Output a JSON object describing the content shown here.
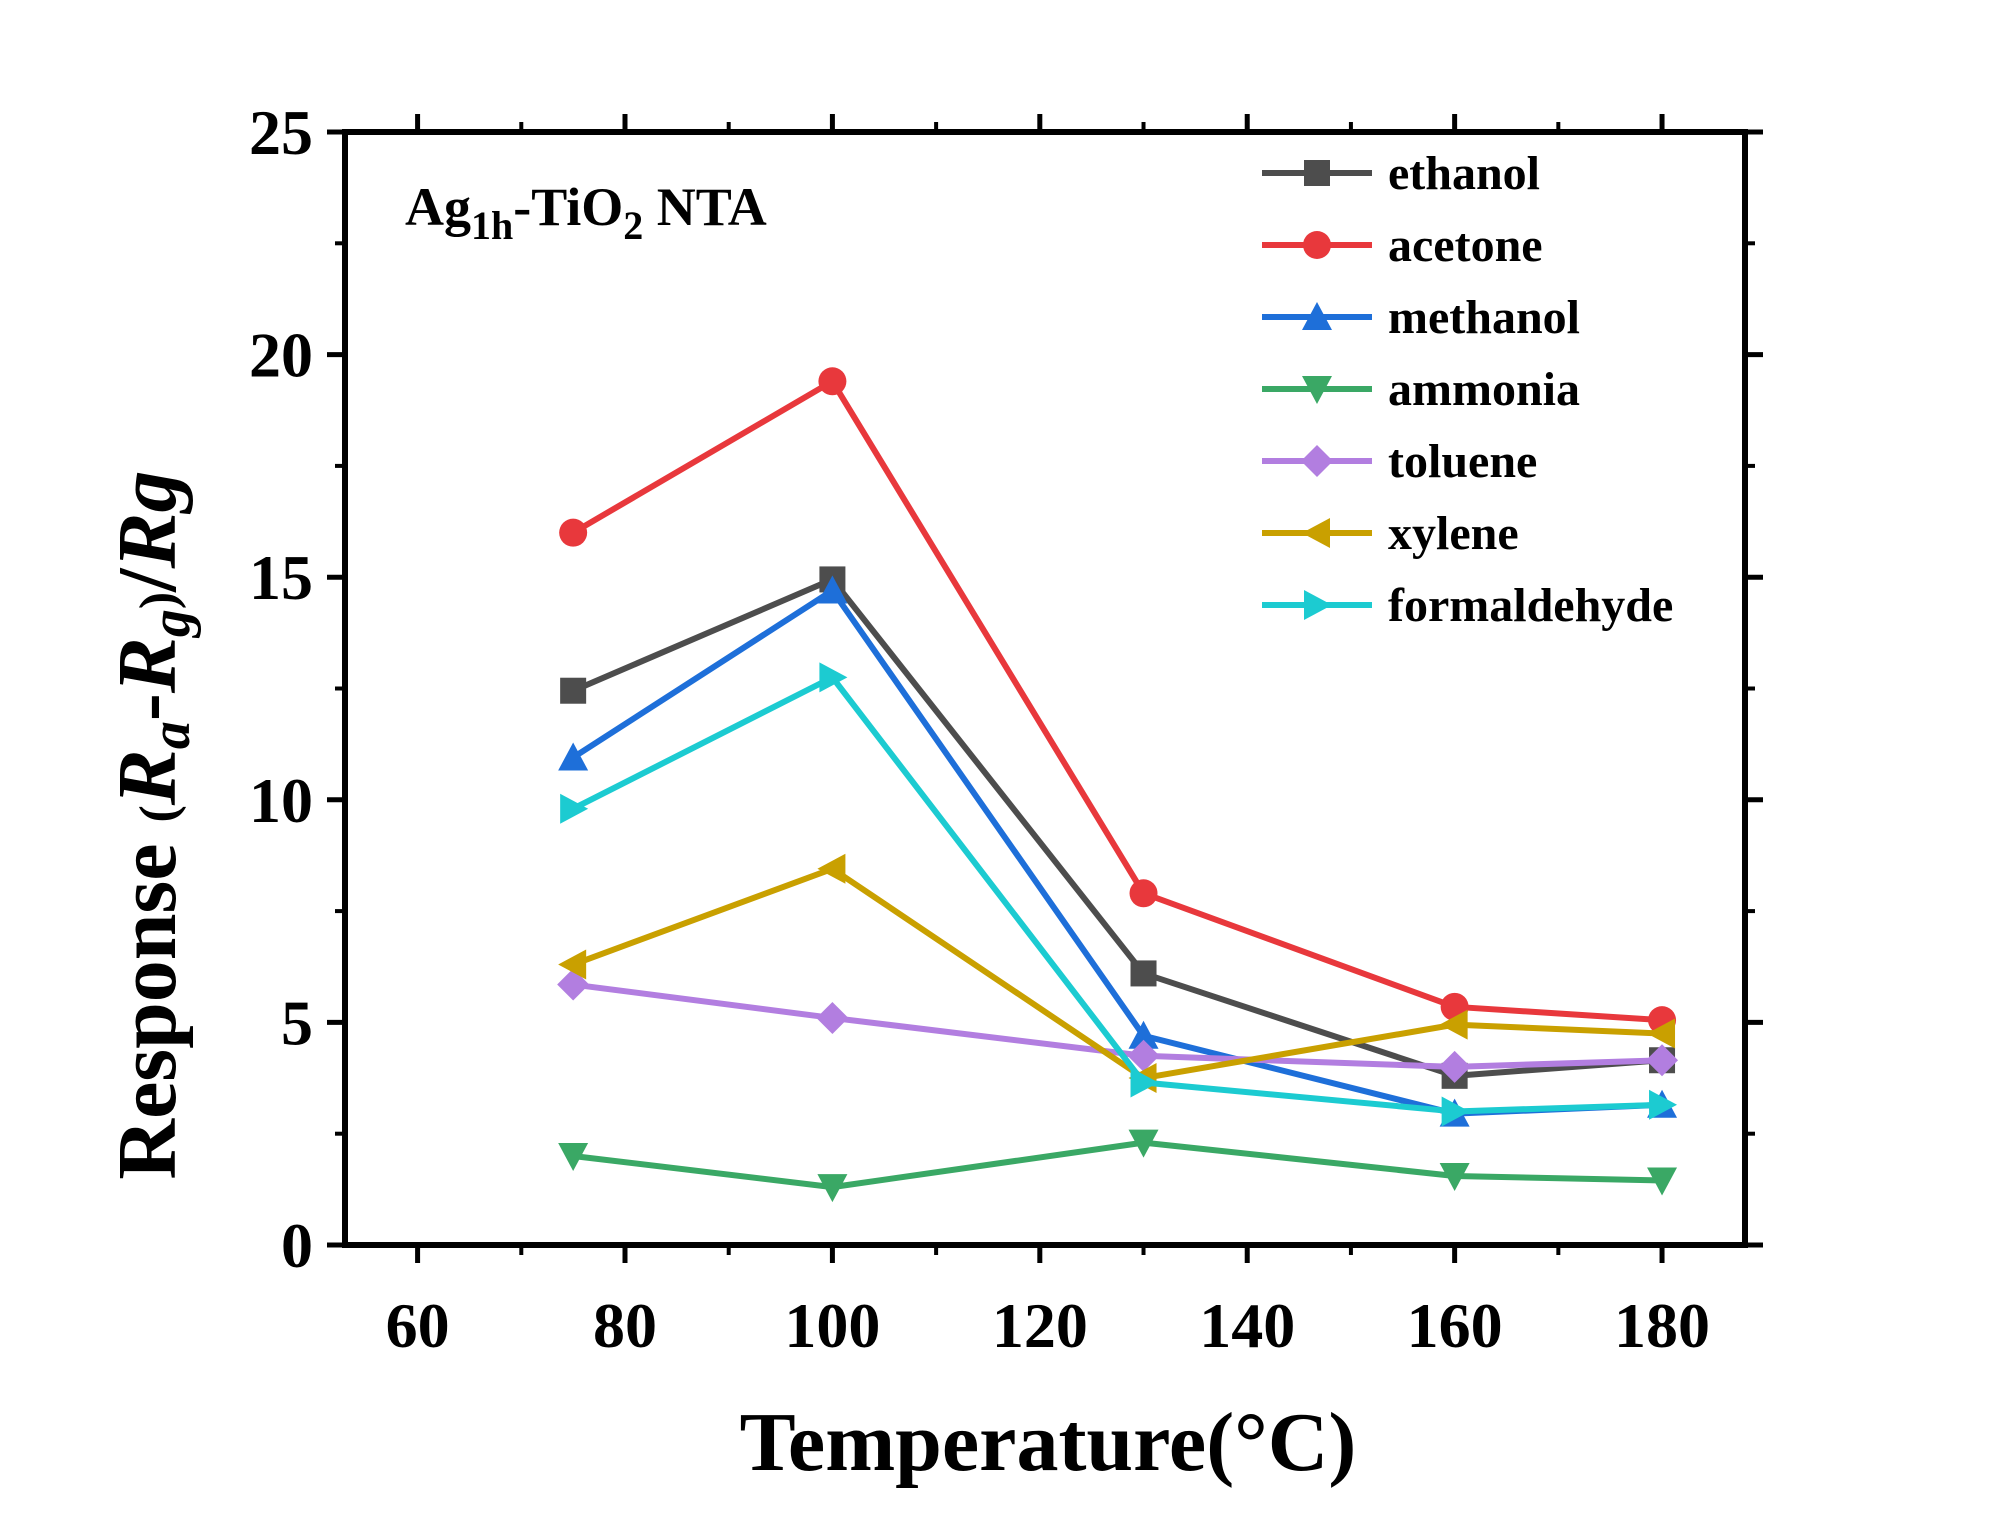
{
  "chart_data": {
    "type": "line",
    "title": "",
    "annotation": {
      "prefix": "Ag",
      "sub1": "1h",
      "middle": "-TiO",
      "sub2": "2",
      "suffix": " NTA"
    },
    "xlabel": "Temperature(°C)",
    "ylabel": "Response (Ra-Rg)/Rg",
    "ylabel_parts": {
      "prefix": "Response ",
      "open_paren": "(",
      "ra": "R",
      "ra_sub": "a",
      "minus": "-",
      "rg": "R",
      "rg_sub": "g",
      "close_paren": ")",
      "slash": "/",
      "rg2": "R",
      "rg2_sub": "g"
    },
    "xlim": [
      53,
      188
    ],
    "ylim": [
      0,
      25
    ],
    "xticks": [
      60,
      80,
      100,
      120,
      140,
      160,
      180
    ],
    "yticks": [
      0,
      5,
      10,
      15,
      20,
      25
    ],
    "grid": false,
    "legend_position": "top-right",
    "x": [
      75,
      100,
      130,
      160,
      180
    ],
    "series": [
      {
        "name": "ethanol",
        "color": "#4d4d4d",
        "marker": "square",
        "values": [
          12.45,
          14.95,
          6.1,
          3.8,
          4.15
        ]
      },
      {
        "name": "acetone",
        "color": "#e8383c",
        "marker": "circle",
        "values": [
          16.0,
          19.4,
          7.9,
          5.35,
          5.05
        ]
      },
      {
        "name": "methanol",
        "color": "#1e6fd9",
        "marker": "triangle-up",
        "values": [
          10.95,
          14.7,
          4.7,
          2.95,
          3.15
        ]
      },
      {
        "name": "ammonia",
        "color": "#3aa865",
        "marker": "triangle-down",
        "values": [
          2.0,
          1.3,
          2.3,
          1.55,
          1.45
        ]
      },
      {
        "name": "toluene",
        "color": "#b27ee0",
        "marker": "diamond",
        "values": [
          5.85,
          5.1,
          4.25,
          4.0,
          4.15
        ]
      },
      {
        "name": "xylene",
        "color": "#c9a000",
        "marker": "triangle-left",
        "values": [
          6.3,
          8.45,
          3.75,
          4.95,
          4.75
        ]
      },
      {
        "name": "formaldehyde",
        "color": "#1ccbd1",
        "marker": "triangle-right",
        "values": [
          9.8,
          12.75,
          3.65,
          3.0,
          3.15
        ]
      }
    ]
  }
}
